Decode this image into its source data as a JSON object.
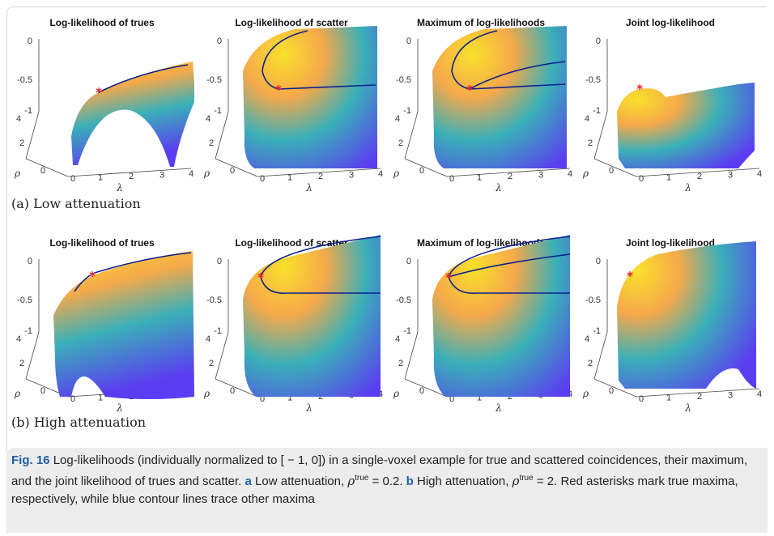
{
  "panel_titles": [
    "Log-likelihood of trues",
    "Log-likelihood of scatter",
    "Maximum of log-likelihoods",
    "Joint log-likelihood"
  ],
  "axes": {
    "z_ticks": [
      "0",
      "-0.5",
      "-1"
    ],
    "rho_ticks": [
      "4",
      "2",
      "0"
    ],
    "lambda_ticks": [
      "0",
      "1",
      "2",
      "3",
      "4"
    ],
    "rho_label": "ρ",
    "lambda_label": "λ"
  },
  "subfigures": [
    "(a) Low attenuation",
    "(b) High attenuation"
  ],
  "caption": {
    "label": "Fig. 16",
    "text1": "Log-likelihoods (individually normalized to [ − 1, 0]) in a single-voxel example for true and scattered coincidences, their maximum, and the joint likelihood of trues and scatter.",
    "a_label": "a",
    "a_text": "Low attenuation,",
    "a_math": "ρ",
    "a_sup": "true",
    "a_val": "= 0.2.",
    "b_label": "b",
    "b_text": "High attenuation,",
    "b_math": "ρ",
    "b_sup": "true",
    "b_val": "= 2. Red asterisks mark true maxima, respectively, while blue contour lines trace other maxima"
  },
  "colors": {
    "surface_top": "#f9e12b",
    "surface_mid": "#f6a94a",
    "surface_low": "#3ab0b8",
    "surface_bottom": "#5a3df0",
    "marker": "#e8202a",
    "contour": "#0b1f8f"
  }
}
